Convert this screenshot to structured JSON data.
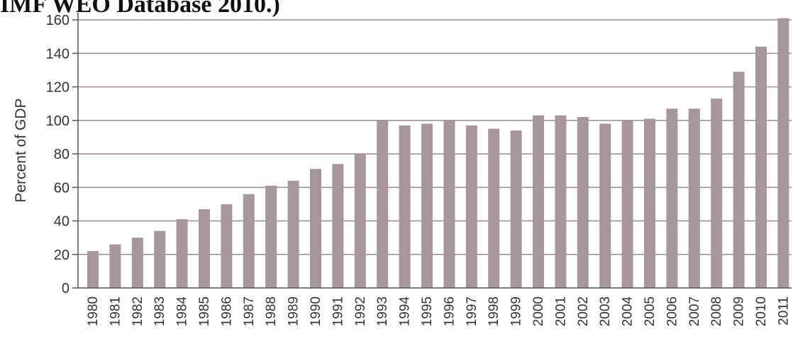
{
  "caption": {
    "text": "IMF WEO Database 2010.)"
  },
  "chart_data": {
    "type": "bar",
    "title": "",
    "xlabel": "",
    "ylabel": "Percent of GDP",
    "ylim": [
      0,
      160
    ],
    "yticks": [
      0,
      20,
      40,
      60,
      80,
      100,
      120,
      140,
      160
    ],
    "grid": true,
    "categories": [
      "1980",
      "1981",
      "1982",
      "1983",
      "1984",
      "1985",
      "1986",
      "1987",
      "1988",
      "1989",
      "1990",
      "1991",
      "1992",
      "1993",
      "1994",
      "1995",
      "1996",
      "1997",
      "1998",
      "1999",
      "2000",
      "2001",
      "2002",
      "2003",
      "2004",
      "2005",
      "2006",
      "2007",
      "2008",
      "2009",
      "2010",
      "2011"
    ],
    "values": [
      22,
      26,
      30,
      34,
      41,
      47,
      50,
      56,
      61,
      64,
      71,
      74,
      80,
      100,
      97,
      98,
      100,
      97,
      95,
      94,
      103,
      103,
      102,
      98,
      100,
      101,
      107,
      107,
      113,
      129,
      144,
      161
    ],
    "colors": {
      "bar": "#a8969f",
      "grid": "#9a8a94",
      "axis": "#555555",
      "text": "#333333"
    }
  }
}
